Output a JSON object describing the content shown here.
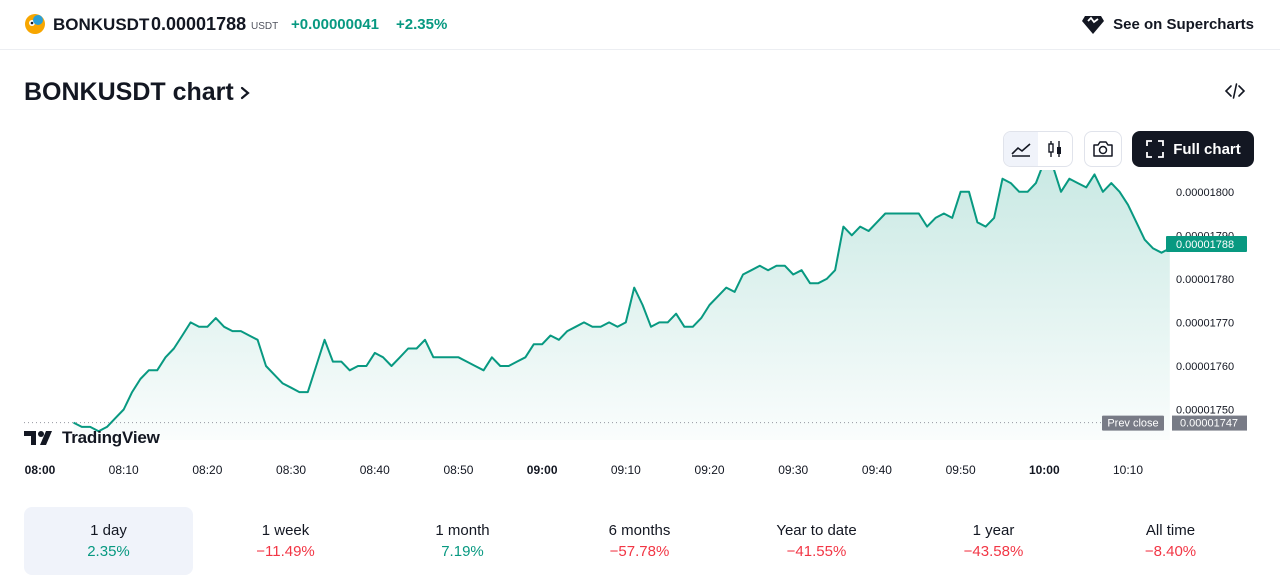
{
  "header": {
    "symbol": "BONKUSDT",
    "price": "0.00001788",
    "unit": "USDT",
    "change": "+0.00000041",
    "change_percent": "+2.35%",
    "supercharts_label": "See on Supercharts"
  },
  "title": {
    "text": "BONKUSDT chart"
  },
  "toolbar": {
    "full_chart_label": "Full chart"
  },
  "colors": {
    "accent": "#089981",
    "negative": "#f23645",
    "text": "#131722"
  },
  "chart_data": {
    "type": "area",
    "x_labels": [
      {
        "t": 0,
        "label": "08:00",
        "bold": true
      },
      {
        "t": 10,
        "label": "08:10"
      },
      {
        "t": 20,
        "label": "08:20"
      },
      {
        "t": 30,
        "label": "08:30"
      },
      {
        "t": 40,
        "label": "08:40"
      },
      {
        "t": 50,
        "label": "08:50"
      },
      {
        "t": 60,
        "label": "09:00",
        "bold": true
      },
      {
        "t": 70,
        "label": "09:10"
      },
      {
        "t": 80,
        "label": "09:20"
      },
      {
        "t": 90,
        "label": "09:30"
      },
      {
        "t": 100,
        "label": "09:40"
      },
      {
        "t": 110,
        "label": "09:50"
      },
      {
        "t": 120,
        "label": "10:00",
        "bold": true
      },
      {
        "t": 130,
        "label": "10:10"
      }
    ],
    "y_ticks": [
      {
        "v": 1.75e-05,
        "label": "0.00001750"
      },
      {
        "v": 1.76e-05,
        "label": "0.00001760"
      },
      {
        "v": 1.77e-05,
        "label": "0.00001770"
      },
      {
        "v": 1.78e-05,
        "label": "0.00001780"
      },
      {
        "v": 1.79e-05,
        "label": "0.00001790"
      },
      {
        "v": 1.8e-05,
        "label": "0.00001800"
      }
    ],
    "ylim": [
      1.743e-05,
      1.805e-05
    ],
    "xlim": [
      0,
      148
    ],
    "prev_close": {
      "value": 1.747e-05,
      "label": "0.00001747",
      "text": "Prev close"
    },
    "last_value": {
      "value": 1.788e-05,
      "label": "0.00001788"
    },
    "series": [
      [
        4,
        1.747e-05
      ],
      [
        5,
        1.746e-05
      ],
      [
        6,
        1.746e-05
      ],
      [
        7,
        1.745e-05
      ],
      [
        8,
        1.746e-05
      ],
      [
        9,
        1.748e-05
      ],
      [
        10,
        1.75e-05
      ],
      [
        11,
        1.754e-05
      ],
      [
        12,
        1.757e-05
      ],
      [
        13,
        1.759e-05
      ],
      [
        14,
        1.759e-05
      ],
      [
        15,
        1.762e-05
      ],
      [
        16,
        1.764e-05
      ],
      [
        17,
        1.767e-05
      ],
      [
        18,
        1.77e-05
      ],
      [
        19,
        1.769e-05
      ],
      [
        20,
        1.769e-05
      ],
      [
        21,
        1.771e-05
      ],
      [
        22,
        1.769e-05
      ],
      [
        23,
        1.768e-05
      ],
      [
        24,
        1.768e-05
      ],
      [
        25,
        1.767e-05
      ],
      [
        26,
        1.766e-05
      ],
      [
        27,
        1.76e-05
      ],
      [
        28,
        1.758e-05
      ],
      [
        29,
        1.756e-05
      ],
      [
        30,
        1.755e-05
      ],
      [
        31,
        1.754e-05
      ],
      [
        32,
        1.754e-05
      ],
      [
        33,
        1.76e-05
      ],
      [
        34,
        1.766e-05
      ],
      [
        35,
        1.761e-05
      ],
      [
        36,
        1.761e-05
      ],
      [
        37,
        1.759e-05
      ],
      [
        38,
        1.76e-05
      ],
      [
        39,
        1.76e-05
      ],
      [
        40,
        1.763e-05
      ],
      [
        41,
        1.762e-05
      ],
      [
        42,
        1.76e-05
      ],
      [
        43,
        1.762e-05
      ],
      [
        44,
        1.764e-05
      ],
      [
        45,
        1.764e-05
      ],
      [
        46,
        1.766e-05
      ],
      [
        47,
        1.762e-05
      ],
      [
        48,
        1.762e-05
      ],
      [
        49,
        1.762e-05
      ],
      [
        50,
        1.762e-05
      ],
      [
        51,
        1.761e-05
      ],
      [
        52,
        1.76e-05
      ],
      [
        53,
        1.759e-05
      ],
      [
        54,
        1.762e-05
      ],
      [
        55,
        1.76e-05
      ],
      [
        56,
        1.76e-05
      ],
      [
        57,
        1.761e-05
      ],
      [
        58,
        1.762e-05
      ],
      [
        59,
        1.765e-05
      ],
      [
        60,
        1.765e-05
      ],
      [
        61,
        1.767e-05
      ],
      [
        62,
        1.766e-05
      ],
      [
        63,
        1.768e-05
      ],
      [
        64,
        1.769e-05
      ],
      [
        65,
        1.77e-05
      ],
      [
        66,
        1.769e-05
      ],
      [
        67,
        1.769e-05
      ],
      [
        68,
        1.77e-05
      ],
      [
        69,
        1.769e-05
      ],
      [
        70,
        1.77e-05
      ],
      [
        71,
        1.778e-05
      ],
      [
        72,
        1.774e-05
      ],
      [
        73,
        1.769e-05
      ],
      [
        74,
        1.77e-05
      ],
      [
        75,
        1.77e-05
      ],
      [
        76,
        1.772e-05
      ],
      [
        77,
        1.769e-05
      ],
      [
        78,
        1.769e-05
      ],
      [
        79,
        1.771e-05
      ],
      [
        80,
        1.774e-05
      ],
      [
        81,
        1.776e-05
      ],
      [
        82,
        1.778e-05
      ],
      [
        83,
        1.777e-05
      ],
      [
        84,
        1.781e-05
      ],
      [
        85,
        1.782e-05
      ],
      [
        86,
        1.783e-05
      ],
      [
        87,
        1.782e-05
      ],
      [
        88,
        1.783e-05
      ],
      [
        89,
        1.783e-05
      ],
      [
        90,
        1.781e-05
      ],
      [
        91,
        1.782e-05
      ],
      [
        92,
        1.779e-05
      ],
      [
        93,
        1.779e-05
      ],
      [
        94,
        1.78e-05
      ],
      [
        95,
        1.782e-05
      ],
      [
        96,
        1.792e-05
      ],
      [
        97,
        1.79e-05
      ],
      [
        98,
        1.792e-05
      ],
      [
        99,
        1.791e-05
      ],
      [
        100,
        1.793e-05
      ],
      [
        101,
        1.795e-05
      ],
      [
        102,
        1.795e-05
      ],
      [
        103,
        1.795e-05
      ],
      [
        104,
        1.795e-05
      ],
      [
        105,
        1.795e-05
      ],
      [
        106,
        1.792e-05
      ],
      [
        107,
        1.794e-05
      ],
      [
        108,
        1.795e-05
      ],
      [
        109,
        1.794e-05
      ],
      [
        110,
        1.8e-05
      ],
      [
        111,
        1.8e-05
      ],
      [
        112,
        1.793e-05
      ],
      [
        113,
        1.792e-05
      ],
      [
        114,
        1.794e-05
      ],
      [
        115,
        1.803e-05
      ],
      [
        116,
        1.802e-05
      ],
      [
        117,
        1.8e-05
      ],
      [
        118,
        1.8e-05
      ],
      [
        119,
        1.802e-05
      ],
      [
        120,
        1.807e-05
      ],
      [
        121,
        1.806e-05
      ],
      [
        122,
        1.8e-05
      ],
      [
        123,
        1.803e-05
      ],
      [
        124,
        1.802e-05
      ],
      [
        125,
        1.801e-05
      ],
      [
        126,
        1.804e-05
      ],
      [
        127,
        1.8e-05
      ],
      [
        128,
        1.802e-05
      ],
      [
        129,
        1.8e-05
      ],
      [
        130,
        1.797e-05
      ],
      [
        131,
        1.793e-05
      ],
      [
        132,
        1.789e-05
      ],
      [
        133,
        1.787e-05
      ],
      [
        134,
        1.786e-05
      ],
      [
        135,
        1.787e-05
      ]
    ]
  },
  "periods": [
    {
      "label": "1 day",
      "value": "2.35%",
      "dir": "up",
      "active": true
    },
    {
      "label": "1 week",
      "value": "−11.49%",
      "dir": "down"
    },
    {
      "label": "1 month",
      "value": "7.19%",
      "dir": "up"
    },
    {
      "label": "6 months",
      "value": "−57.78%",
      "dir": "down"
    },
    {
      "label": "Year to date",
      "value": "−41.55%",
      "dir": "down"
    },
    {
      "label": "1 year",
      "value": "−43.58%",
      "dir": "down"
    },
    {
      "label": "All time",
      "value": "−8.40%",
      "dir": "down"
    }
  ]
}
